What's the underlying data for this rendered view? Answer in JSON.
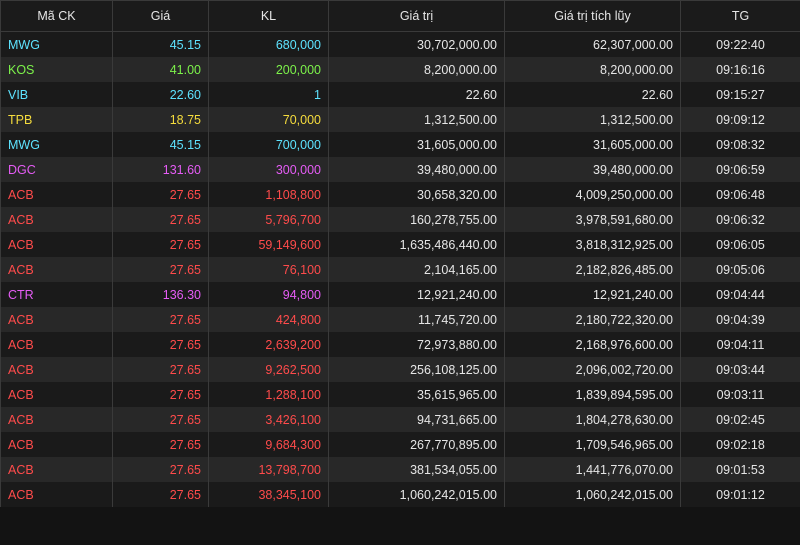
{
  "colors": {
    "cyan": "#5ee3ff",
    "green": "#7cf24a",
    "yellow": "#f5dc3d",
    "purple": "#e55cf5",
    "red": "#ff4b4b",
    "background": "#131313"
  },
  "table": {
    "headers": [
      "Mã CK",
      "Giá",
      "KL",
      "Giá trị",
      "Giá trị tích lũy",
      "TG"
    ],
    "rows": [
      {
        "symbol": "MWG",
        "price": "45.15",
        "volume": "680,000",
        "value": "30,702,000.00",
        "cumulative": "62,307,000.00",
        "time": "09:22:40",
        "color": "cyan"
      },
      {
        "symbol": "KOS",
        "price": "41.00",
        "volume": "200,000",
        "value": "8,200,000.00",
        "cumulative": "8,200,000.00",
        "time": "09:16:16",
        "color": "green"
      },
      {
        "symbol": "VIB",
        "price": "22.60",
        "volume": "1",
        "value": "22.60",
        "cumulative": "22.60",
        "time": "09:15:27",
        "color": "cyan"
      },
      {
        "symbol": "TPB",
        "price": "18.75",
        "volume": "70,000",
        "value": "1,312,500.00",
        "cumulative": "1,312,500.00",
        "time": "09:09:12",
        "color": "yellow"
      },
      {
        "symbol": "MWG",
        "price": "45.15",
        "volume": "700,000",
        "value": "31,605,000.00",
        "cumulative": "31,605,000.00",
        "time": "09:08:32",
        "color": "cyan"
      },
      {
        "symbol": "DGC",
        "price": "131.60",
        "volume": "300,000",
        "value": "39,480,000.00",
        "cumulative": "39,480,000.00",
        "time": "09:06:59",
        "color": "purple"
      },
      {
        "symbol": "ACB",
        "price": "27.65",
        "volume": "1,108,800",
        "value": "30,658,320.00",
        "cumulative": "4,009,250,000.00",
        "time": "09:06:48",
        "color": "red"
      },
      {
        "symbol": "ACB",
        "price": "27.65",
        "volume": "5,796,700",
        "value": "160,278,755.00",
        "cumulative": "3,978,591,680.00",
        "time": "09:06:32",
        "color": "red"
      },
      {
        "symbol": "ACB",
        "price": "27.65",
        "volume": "59,149,600",
        "value": "1,635,486,440.00",
        "cumulative": "3,818,312,925.00",
        "time": "09:06:05",
        "color": "red"
      },
      {
        "symbol": "ACB",
        "price": "27.65",
        "volume": "76,100",
        "value": "2,104,165.00",
        "cumulative": "2,182,826,485.00",
        "time": "09:05:06",
        "color": "red"
      },
      {
        "symbol": "CTR",
        "price": "136.30",
        "volume": "94,800",
        "value": "12,921,240.00",
        "cumulative": "12,921,240.00",
        "time": "09:04:44",
        "color": "purple"
      },
      {
        "symbol": "ACB",
        "price": "27.65",
        "volume": "424,800",
        "value": "11,745,720.00",
        "cumulative": "2,180,722,320.00",
        "time": "09:04:39",
        "color": "red"
      },
      {
        "symbol": "ACB",
        "price": "27.65",
        "volume": "2,639,200",
        "value": "72,973,880.00",
        "cumulative": "2,168,976,600.00",
        "time": "09:04:11",
        "color": "red"
      },
      {
        "symbol": "ACB",
        "price": "27.65",
        "volume": "9,262,500",
        "value": "256,108,125.00",
        "cumulative": "2,096,002,720.00",
        "time": "09:03:44",
        "color": "red"
      },
      {
        "symbol": "ACB",
        "price": "27.65",
        "volume": "1,288,100",
        "value": "35,615,965.00",
        "cumulative": "1,839,894,595.00",
        "time": "09:03:11",
        "color": "red"
      },
      {
        "symbol": "ACB",
        "price": "27.65",
        "volume": "3,426,100",
        "value": "94,731,665.00",
        "cumulative": "1,804,278,630.00",
        "time": "09:02:45",
        "color": "red"
      },
      {
        "symbol": "ACB",
        "price": "27.65",
        "volume": "9,684,300",
        "value": "267,770,895.00",
        "cumulative": "1,709,546,965.00",
        "time": "09:02:18",
        "color": "red"
      },
      {
        "symbol": "ACB",
        "price": "27.65",
        "volume": "13,798,700",
        "value": "381,534,055.00",
        "cumulative": "1,441,776,070.00",
        "time": "09:01:53",
        "color": "red"
      },
      {
        "symbol": "ACB",
        "price": "27.65",
        "volume": "38,345,100",
        "value": "1,060,242,015.00",
        "cumulative": "1,060,242,015.00",
        "time": "09:01:12",
        "color": "red"
      }
    ]
  }
}
